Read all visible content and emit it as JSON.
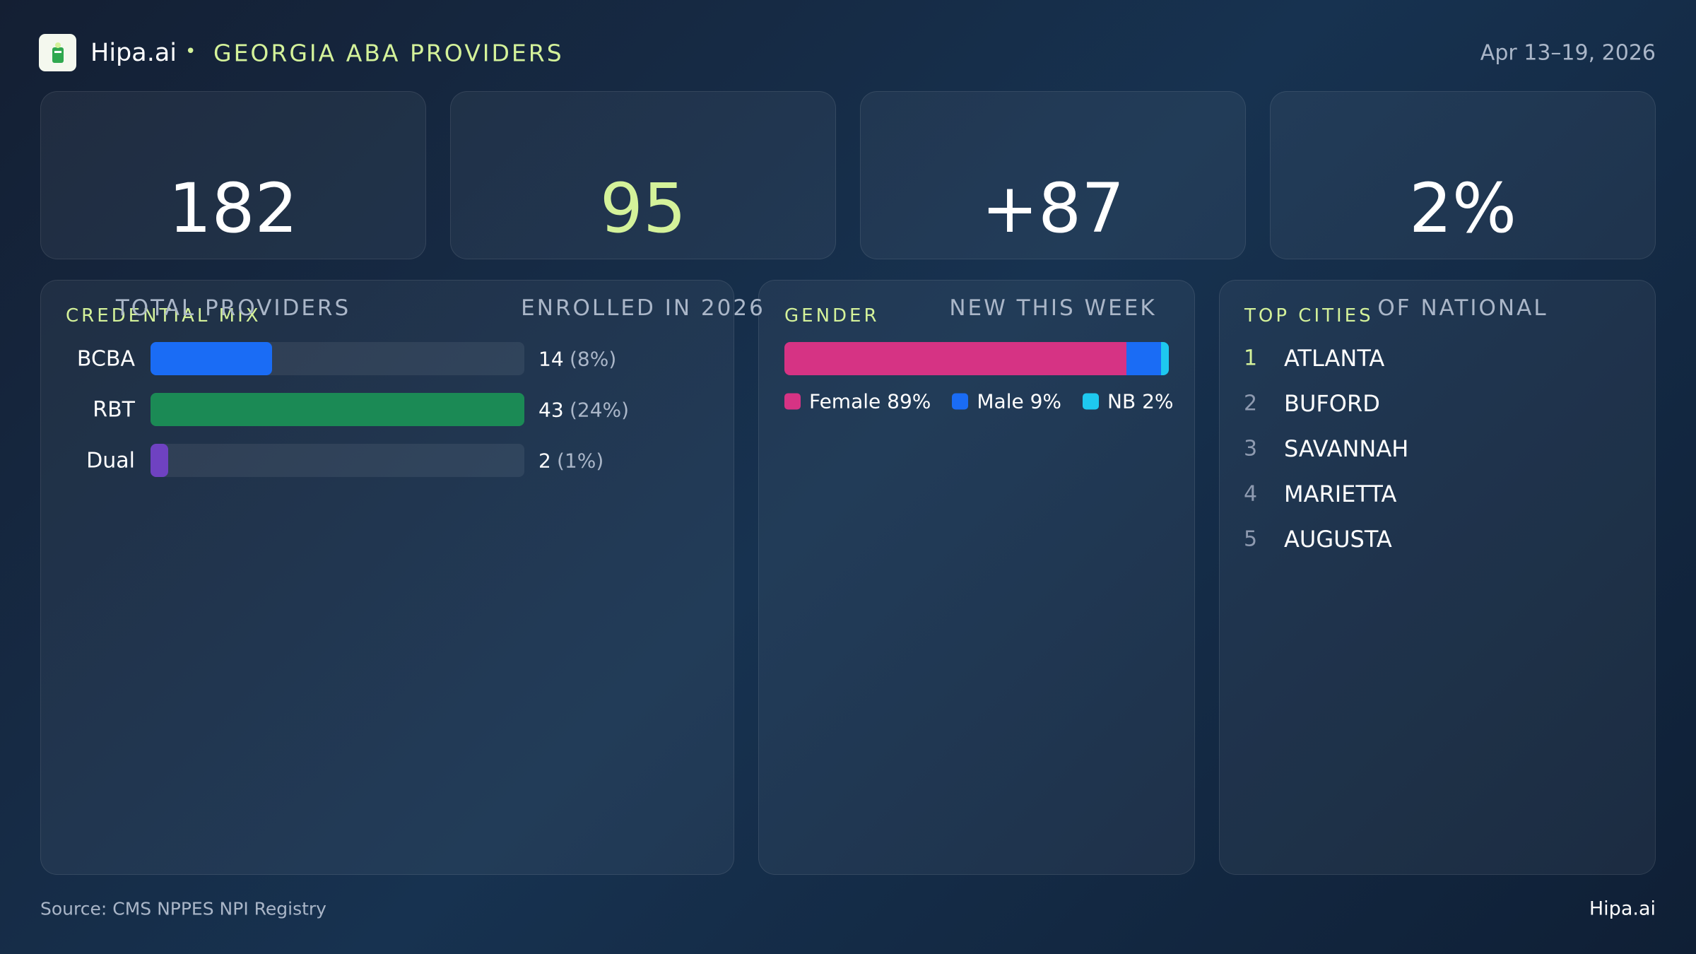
{
  "header": {
    "brand": "Hipa.ai",
    "separator": "•",
    "title": "GEORGIA ABA PROVIDERS",
    "date": "Apr 13–19, 2026"
  },
  "kpis": [
    {
      "value": "182",
      "label": "TOTAL PROVIDERS",
      "color": "#ffffff"
    },
    {
      "value": "95",
      "label": "ENROLLED IN 2026",
      "color": "#d4f29a"
    },
    {
      "value": "+87",
      "label": "NEW THIS WEEK",
      "color": "#ffffff"
    },
    {
      "value": "2%",
      "label": "OF NATIONAL",
      "color": "#ffffff"
    }
  ],
  "credential_mix": {
    "title": "CREDENTIAL MIX",
    "rows": [
      {
        "label": "BCBA",
        "count": 14,
        "share": "(8%)",
        "color": "#1a6cf5"
      },
      {
        "label": "RBT",
        "count": 43,
        "share": "(24%)",
        "color": "#1b8a55"
      },
      {
        "label": "Dual",
        "count": 2,
        "share": "(1%)",
        "color": "#6f42c1"
      }
    ]
  },
  "gender": {
    "title": "GENDER",
    "segments": [
      {
        "label": "Female 89%",
        "value": 89,
        "color": "#d63384"
      },
      {
        "label": "Male 9%",
        "value": 9,
        "color": "#1a6cf5"
      },
      {
        "label": "NB 2%",
        "value": 2,
        "color": "#1ec8ef"
      }
    ]
  },
  "top_cities": {
    "title": "TOP CITIES",
    "items": [
      {
        "rank": "1",
        "name": "ATLANTA"
      },
      {
        "rank": "2",
        "name": "BUFORD"
      },
      {
        "rank": "3",
        "name": "SAVANNAH"
      },
      {
        "rank": "4",
        "name": "MARIETTA"
      },
      {
        "rank": "5",
        "name": "AUGUSTA"
      }
    ]
  },
  "footer": {
    "source": "Source: CMS NPPES NPI Registry",
    "brand": "Hipa.ai"
  }
}
